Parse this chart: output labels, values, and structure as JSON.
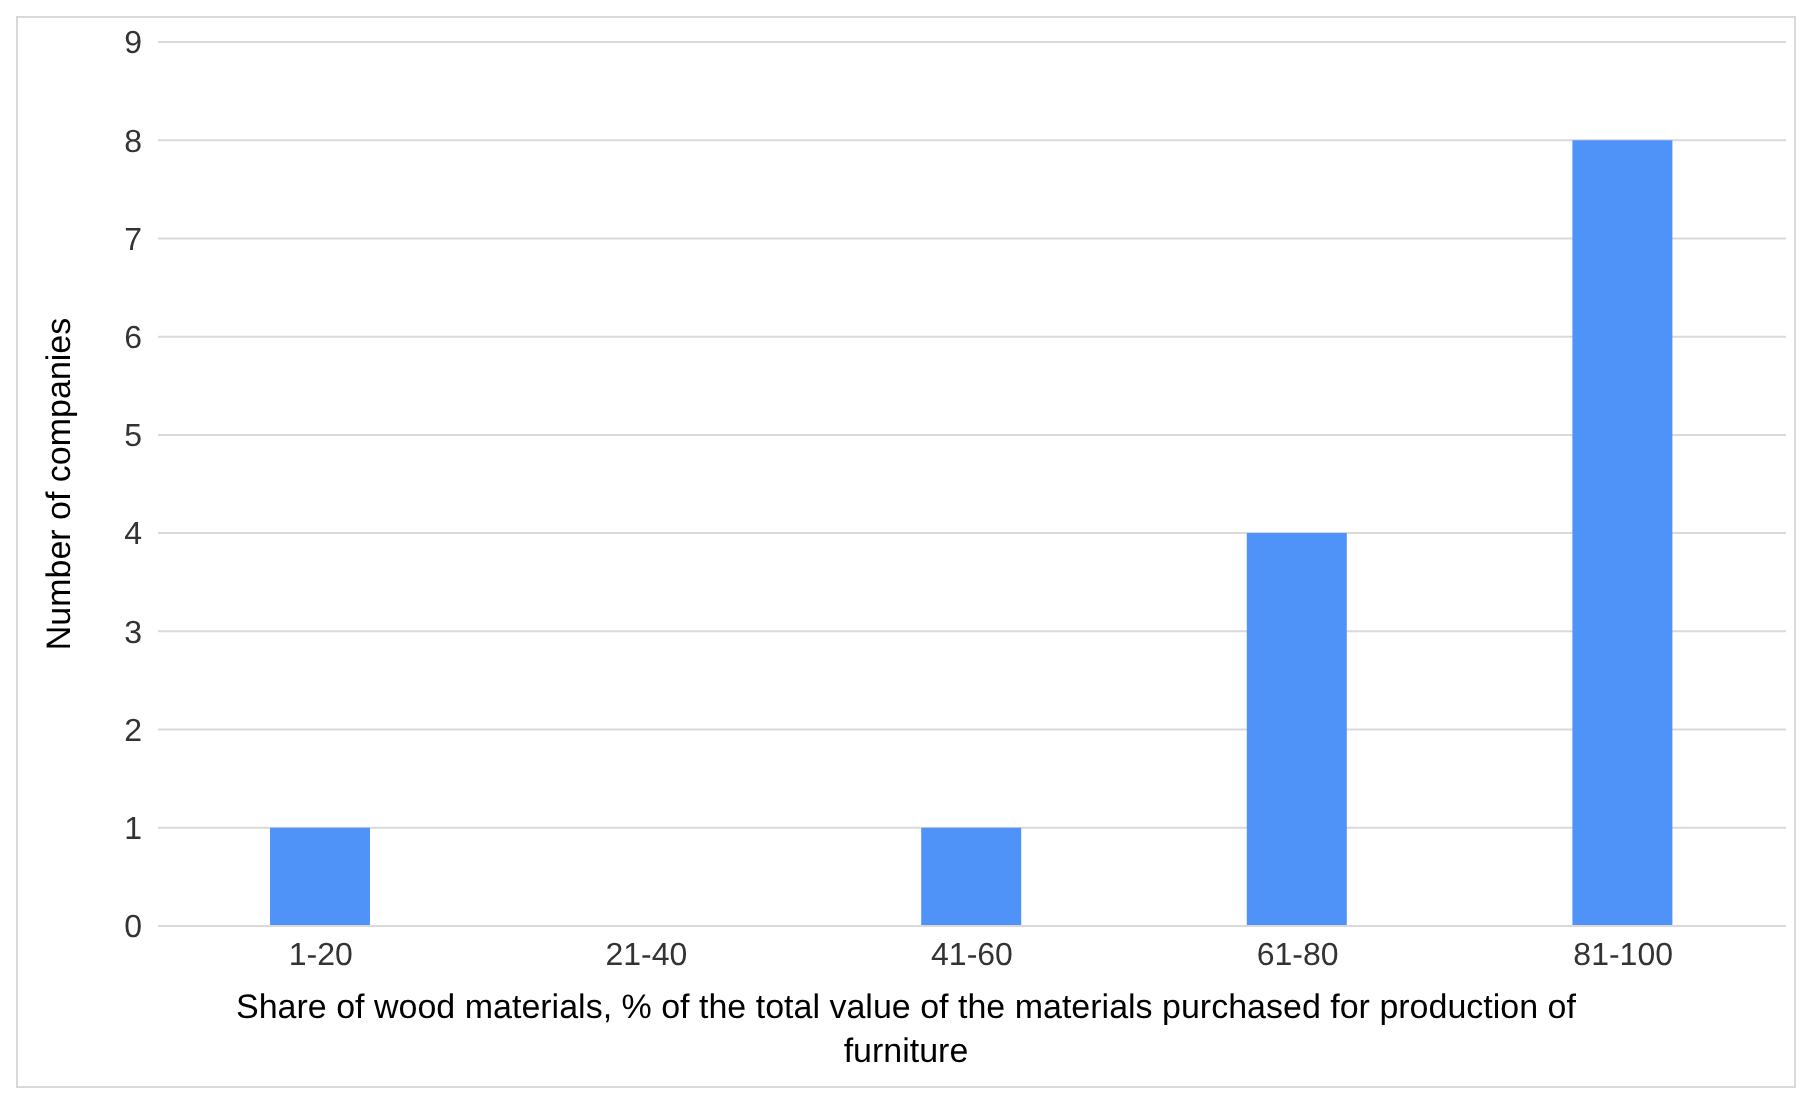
{
  "chart_data": {
    "type": "bar",
    "categories": [
      "1-20",
      "21-40",
      "41-60",
      "61-80",
      "81-100"
    ],
    "values": [
      1,
      0,
      1,
      4,
      8
    ],
    "color": "#4f93f8",
    "ylim": [
      0,
      9
    ],
    "yticks": [
      0,
      1,
      2,
      3,
      4,
      5,
      6,
      7,
      8,
      9
    ],
    "grid": "y",
    "xlabel": "Share of wood materials, % of the total value of the materials purchased for production of furniture",
    "ylabel": "Number of companies"
  }
}
